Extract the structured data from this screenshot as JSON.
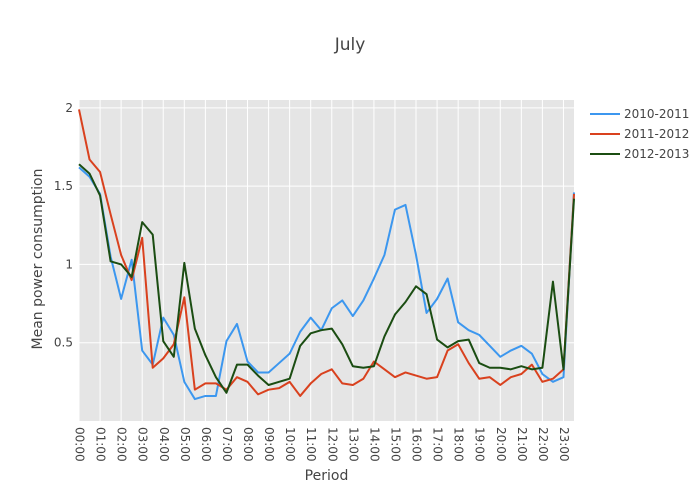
{
  "chart_data": {
    "type": "line",
    "title": "July",
    "xlabel": "Period",
    "ylabel": "Mean power consumption",
    "ylim": [
      0.0,
      2.05
    ],
    "grid": true,
    "legend_position": "right",
    "background_color": "#e5e5e5",
    "x_ticks": [
      "00:00",
      "01:00",
      "02:00",
      "03:00",
      "04:00",
      "05:00",
      "06:00",
      "07:00",
      "08:00",
      "09:00",
      "10:00",
      "11:00",
      "12:00",
      "13:00",
      "14:00",
      "15:00",
      "16:00",
      "17:00",
      "18:00",
      "19:00",
      "20:00",
      "21:00",
      "22:00",
      "23:00"
    ],
    "y_ticks": [
      0.5,
      1,
      1.5,
      2
    ],
    "y_tick_labels": [
      "0.5",
      "1",
      "1.5",
      "2"
    ],
    "x": [
      "00:00",
      "00:30",
      "01:00",
      "01:30",
      "02:00",
      "02:30",
      "03:00",
      "03:30",
      "04:00",
      "04:30",
      "05:00",
      "05:30",
      "06:00",
      "06:30",
      "07:00",
      "07:30",
      "08:00",
      "08:30",
      "09:00",
      "09:30",
      "10:00",
      "10:30",
      "11:00",
      "11:30",
      "12:00",
      "12:30",
      "13:00",
      "13:30",
      "14:00",
      "14:30",
      "15:00",
      "15:30",
      "16:00",
      "16:30",
      "17:00",
      "17:30",
      "18:00",
      "18:30",
      "19:00",
      "19:30",
      "20:00",
      "20:30",
      "21:00",
      "21:30",
      "22:00",
      "22:30",
      "23:00",
      "23:30"
    ],
    "series": [
      {
        "name": "2010-2011",
        "color": "#3c97ef",
        "values": [
          1.62,
          1.56,
          1.45,
          1.05,
          0.78,
          1.03,
          0.45,
          0.36,
          0.66,
          0.55,
          0.25,
          0.14,
          0.16,
          0.16,
          0.51,
          0.62,
          0.38,
          0.31,
          0.31,
          0.37,
          0.43,
          0.57,
          0.66,
          0.58,
          0.72,
          0.77,
          0.67,
          0.77,
          0.91,
          1.06,
          1.35,
          1.38,
          1.06,
          0.69,
          0.78,
          0.91,
          0.63,
          0.58,
          0.55,
          0.48,
          0.41,
          0.45,
          0.48,
          0.43,
          0.3,
          0.25,
          0.28,
          1.46
        ]
      },
      {
        "name": "2011-2012",
        "color": "#d9411e",
        "values": [
          1.99,
          1.67,
          1.59,
          1.32,
          1.06,
          0.9,
          1.17,
          0.34,
          0.4,
          0.49,
          0.79,
          0.2,
          0.24,
          0.24,
          0.2,
          0.28,
          0.25,
          0.17,
          0.2,
          0.21,
          0.25,
          0.16,
          0.24,
          0.3,
          0.33,
          0.24,
          0.23,
          0.27,
          0.38,
          0.33,
          0.28,
          0.31,
          0.29,
          0.27,
          0.28,
          0.45,
          0.49,
          0.37,
          0.27,
          0.28,
          0.23,
          0.28,
          0.3,
          0.36,
          0.25,
          0.27,
          0.33,
          1.45
        ]
      },
      {
        "name": "2012-2013",
        "color": "#1b4d12",
        "values": [
          1.64,
          1.58,
          1.44,
          1.02,
          1.0,
          0.92,
          1.27,
          1.19,
          0.51,
          0.41,
          1.01,
          0.59,
          0.42,
          0.28,
          0.18,
          0.36,
          0.36,
          0.29,
          0.23,
          0.25,
          0.27,
          0.48,
          0.56,
          0.58,
          0.59,
          0.49,
          0.35,
          0.34,
          0.35,
          0.54,
          0.68,
          0.76,
          0.86,
          0.81,
          0.52,
          0.47,
          0.51,
          0.52,
          0.37,
          0.34,
          0.34,
          0.33,
          0.35,
          0.33,
          0.34,
          0.89,
          0.33,
          1.42
        ]
      }
    ]
  }
}
